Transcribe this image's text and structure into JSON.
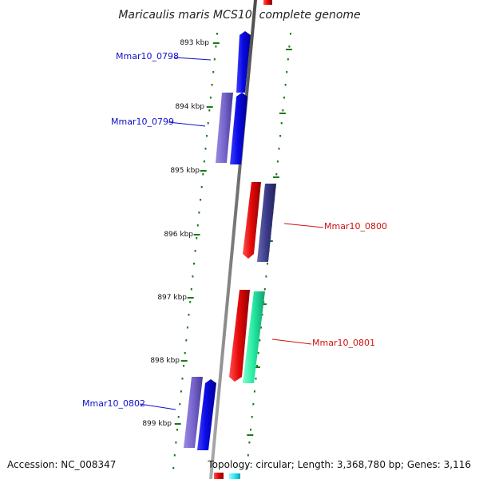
{
  "title": "Maricaulis maris MCS10, complete genome",
  "accession": "Accession: NC_008347",
  "topology": "Topology: circular; Length: 3,368,780 bp; Genes: 3,116",
  "kbp_labels": [
    "893 kbp",
    "894 kbp",
    "895 kbp",
    "896 kbp",
    "897 kbp",
    "898 kbp",
    "899 kbp"
  ],
  "genes": {
    "left": [
      "Mmar10_0798",
      "Mmar10_0799",
      "Mmar10_0802"
    ],
    "right": [
      "Mmar10_0800",
      "Mmar10_0801"
    ]
  },
  "colors": {
    "backbone": "#8a8a8a",
    "ticks": "#1a7a1a",
    "blue": "#0a0ae6",
    "lavender": "#7766cc",
    "red": "#e60a0a",
    "navy": "#3a3a88",
    "green": "#22e8a0",
    "cyan": "#22e8ee",
    "label_left": "#1010c8",
    "label_right": "#d01010"
  }
}
